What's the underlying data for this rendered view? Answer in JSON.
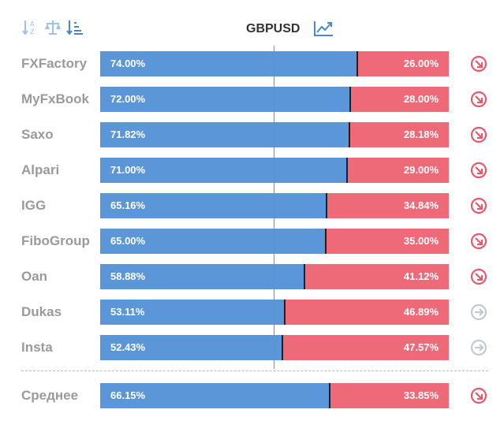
{
  "symbol": "GBPUSD",
  "toolbar": {
    "sort_icons": [
      "sort-alpha-icon",
      "balance-scale-icon",
      "sort-amount-icon"
    ],
    "chart_icon": "line-chart-icon",
    "icon_color": "#9cc2ea",
    "chart_icon_color": "#4a87c8"
  },
  "colors": {
    "long": "#5b97d8",
    "short": "#ef6a79",
    "signal_down": "#e8586b",
    "signal_neutral": "#c3c9d1"
  },
  "rows": [
    {
      "broker": "FXFactory",
      "long_value": 74.0,
      "long": "74.00%",
      "short": "26.00%",
      "signal": "down"
    },
    {
      "broker": "MyFxBook",
      "long_value": 72.0,
      "long": "72.00%",
      "short": "28.00%",
      "signal": "down"
    },
    {
      "broker": "Saxo",
      "long_value": 71.82,
      "long": "71.82%",
      "short": "28.18%",
      "signal": "down"
    },
    {
      "broker": "Alpari",
      "long_value": 71.0,
      "long": "71.00%",
      "short": "29.00%",
      "signal": "down"
    },
    {
      "broker": "IGG",
      "long_value": 65.16,
      "long": "65.16%",
      "short": "34.84%",
      "signal": "down"
    },
    {
      "broker": "FiboGroup",
      "long_value": 65.0,
      "long": "65.00%",
      "short": "35.00%",
      "signal": "down"
    },
    {
      "broker": "Oan",
      "long_value": 58.88,
      "long": "58.88%",
      "short": "41.12%",
      "signal": "down"
    },
    {
      "broker": "Dukas",
      "long_value": 53.11,
      "long": "53.11%",
      "short": "46.89%",
      "signal": "neutral"
    },
    {
      "broker": "Insta",
      "long_value": 52.43,
      "long": "52.43%",
      "short": "47.57%",
      "signal": "neutral"
    }
  ],
  "average": {
    "broker": "Среднее",
    "long_value": 66.15,
    "long": "66.15%",
    "short": "33.85%",
    "signal": "down"
  }
}
